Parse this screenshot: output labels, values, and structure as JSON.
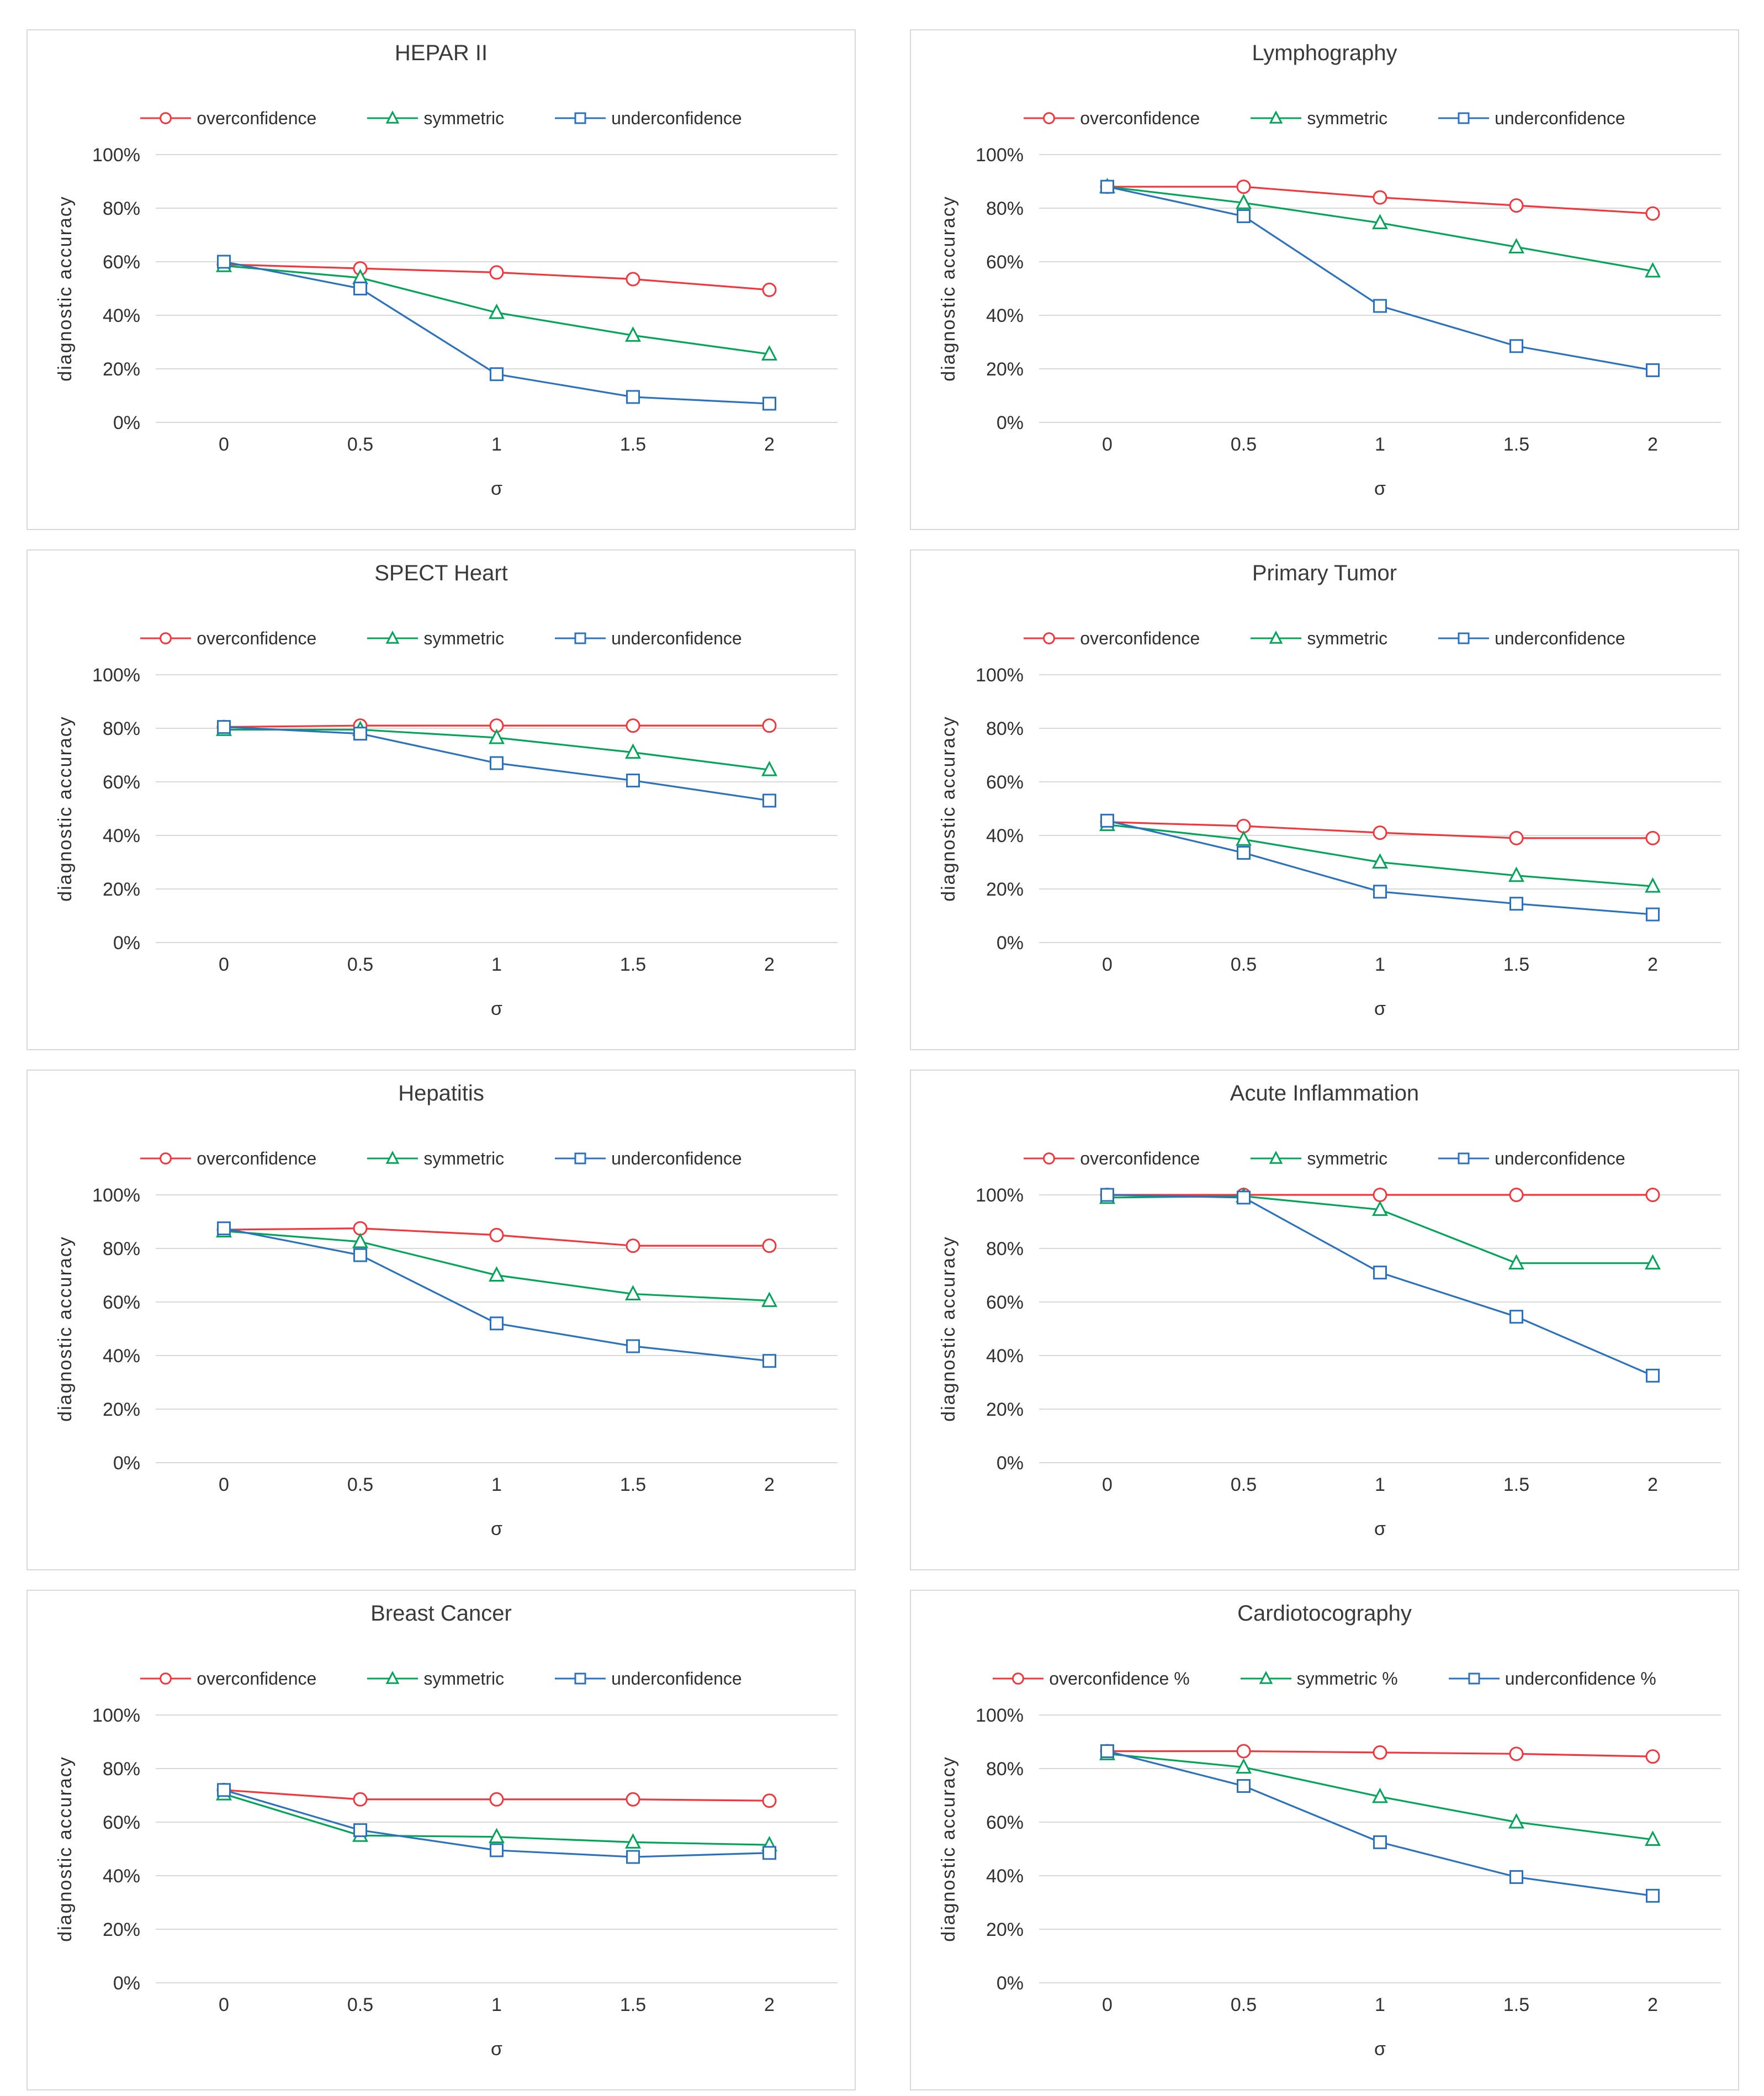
{
  "page": {
    "background": "#ffffff"
  },
  "colors": {
    "overconfidence": "#f4353c",
    "symmetric": "#00a557",
    "underconfidence": "#2a72bf",
    "gridline": "#d9d9d9",
    "panel_border": "#d9d9d9",
    "text": "#303030",
    "marker_fill": "#ffffff"
  },
  "y_axis": {
    "title": "diagnostic accuracy",
    "tick_labels": [
      "100%",
      "80%",
      "60%",
      "40%",
      "20%",
      "0%"
    ],
    "min": 0,
    "max": 100,
    "step": 20,
    "grid": true
  },
  "x_axis": {
    "title": "σ",
    "tick_labels": [
      "0",
      "0.5",
      "1",
      "1.5",
      "2"
    ]
  },
  "chart_data": [
    {
      "type": "line",
      "title": "HEPAR II",
      "xlabel": "σ",
      "ylabel": "diagnostic accuracy",
      "x": [
        0,
        0.5,
        1,
        1.5,
        2
      ],
      "ylim": [
        0,
        100
      ],
      "legend_position": "top",
      "series": [
        {
          "name": "overconfidence",
          "marker": "circle",
          "color_key": "overconfidence",
          "values": [
            59,
            57.5,
            56,
            53.5,
            49.5
          ]
        },
        {
          "name": "symmetric",
          "marker": "triangle",
          "color_key": "symmetric",
          "values": [
            58.5,
            54,
            41,
            32.5,
            25.5
          ]
        },
        {
          "name": "underconfidence",
          "marker": "square",
          "color_key": "underconfidence",
          "values": [
            60,
            50,
            18,
            9.5,
            7
          ]
        }
      ]
    },
    {
      "type": "line",
      "title": "Lymphography",
      "xlabel": "σ",
      "ylabel": "diagnostic accuracy",
      "x": [
        0,
        0.5,
        1,
        1.5,
        2
      ],
      "ylim": [
        0,
        100
      ],
      "legend_position": "top",
      "series": [
        {
          "name": "overconfidence",
          "marker": "circle",
          "color_key": "overconfidence",
          "values": [
            88,
            88,
            84,
            81,
            78
          ]
        },
        {
          "name": "symmetric",
          "marker": "triangle",
          "color_key": "symmetric",
          "values": [
            88,
            82,
            74.5,
            65.5,
            56.5
          ]
        },
        {
          "name": "underconfidence",
          "marker": "square",
          "color_key": "underconfidence",
          "values": [
            88,
            77,
            43.5,
            28.5,
            19.5
          ]
        }
      ]
    },
    {
      "type": "line",
      "title": "SPECT Heart",
      "xlabel": "σ",
      "ylabel": "diagnostic accuracy",
      "x": [
        0,
        0.5,
        1,
        1.5,
        2
      ],
      "ylim": [
        0,
        100
      ],
      "legend_position": "top",
      "series": [
        {
          "name": "overconfidence",
          "marker": "circle",
          "color_key": "overconfidence",
          "values": [
            80.5,
            81,
            81,
            81,
            81
          ]
        },
        {
          "name": "symmetric",
          "marker": "triangle",
          "color_key": "symmetric",
          "values": [
            79.5,
            79.5,
            76.5,
            71,
            64.5
          ]
        },
        {
          "name": "underconfidence",
          "marker": "square",
          "color_key": "underconfidence",
          "values": [
            80.5,
            78,
            67,
            60.5,
            53
          ]
        }
      ]
    },
    {
      "type": "line",
      "title": "Primary Tumor",
      "xlabel": "σ",
      "ylabel": "diagnostic accuracy",
      "x": [
        0,
        0.5,
        1,
        1.5,
        2
      ],
      "ylim": [
        0,
        100
      ],
      "legend_position": "top",
      "series": [
        {
          "name": "overconfidence",
          "marker": "circle",
          "color_key": "overconfidence",
          "values": [
            45,
            43.5,
            41,
            39,
            39
          ]
        },
        {
          "name": "symmetric",
          "marker": "triangle",
          "color_key": "symmetric",
          "values": [
            44,
            38.5,
            30,
            25,
            21
          ]
        },
        {
          "name": "underconfidence",
          "marker": "square",
          "color_key": "underconfidence",
          "values": [
            45.5,
            33.5,
            19,
            14.5,
            10.5
          ]
        }
      ]
    },
    {
      "type": "line",
      "title": "Hepatitis",
      "xlabel": "σ",
      "ylabel": "diagnostic accuracy",
      "x": [
        0,
        0.5,
        1,
        1.5,
        2
      ],
      "ylim": [
        0,
        100
      ],
      "legend_position": "top",
      "series": [
        {
          "name": "overconfidence",
          "marker": "circle",
          "color_key": "overconfidence",
          "values": [
            87,
            87.5,
            85,
            81,
            81
          ]
        },
        {
          "name": "symmetric",
          "marker": "triangle",
          "color_key": "symmetric",
          "values": [
            86.5,
            82.5,
            70,
            63,
            60.5
          ]
        },
        {
          "name": "underconfidence",
          "marker": "square",
          "color_key": "underconfidence",
          "values": [
            87.5,
            77.5,
            52,
            43.5,
            38
          ]
        }
      ]
    },
    {
      "type": "line",
      "title": "Acute Inflammation",
      "xlabel": "σ",
      "ylabel": "diagnostic accuracy",
      "x": [
        0,
        0.5,
        1,
        1.5,
        2
      ],
      "ylim": [
        0,
        100
      ],
      "legend_position": "top",
      "series": [
        {
          "name": "overconfidence",
          "marker": "circle",
          "color_key": "overconfidence",
          "values": [
            100,
            100,
            100,
            100,
            100
          ]
        },
        {
          "name": "symmetric",
          "marker": "triangle",
          "color_key": "symmetric",
          "values": [
            99,
            99.5,
            94.5,
            74.5,
            74.5
          ]
        },
        {
          "name": "underconfidence",
          "marker": "square",
          "color_key": "underconfidence",
          "values": [
            100,
            99,
            71,
            54.5,
            32.5
          ]
        }
      ]
    },
    {
      "type": "line",
      "title": "Breast Cancer",
      "xlabel": "σ",
      "ylabel": "diagnostic accuracy",
      "x": [
        0,
        0.5,
        1,
        1.5,
        2
      ],
      "ylim": [
        0,
        100
      ],
      "legend_position": "top",
      "series": [
        {
          "name": "overconfidence",
          "marker": "circle",
          "color_key": "overconfidence",
          "values": [
            72,
            68.5,
            68.5,
            68.5,
            68
          ]
        },
        {
          "name": "symmetric",
          "marker": "triangle",
          "color_key": "symmetric",
          "values": [
            70.5,
            55,
            54.5,
            52.5,
            51.5
          ]
        },
        {
          "name": "underconfidence",
          "marker": "square",
          "color_key": "underconfidence",
          "values": [
            72,
            57,
            49.5,
            47,
            48.5
          ]
        }
      ]
    },
    {
      "type": "line",
      "title": "Cardiotocography",
      "xlabel": "σ",
      "ylabel": "diagnostic accuracy",
      "x": [
        0,
        0.5,
        1,
        1.5,
        2
      ],
      "ylim": [
        0,
        100
      ],
      "legend_position": "top",
      "legend_labels": [
        "overconfidence %",
        "symmetric %",
        "underconfidence %"
      ],
      "series": [
        {
          "name": "overconfidence %",
          "marker": "circle",
          "color_key": "overconfidence",
          "values": [
            86.5,
            86.5,
            86,
            85.5,
            84.5
          ]
        },
        {
          "name": "symmetric %",
          "marker": "triangle",
          "color_key": "symmetric",
          "values": [
            85.5,
            80.5,
            69.5,
            60,
            53.5
          ]
        },
        {
          "name": "underconfidence %",
          "marker": "square",
          "color_key": "underconfidence",
          "values": [
            86.5,
            73.5,
            52.5,
            39.5,
            32.5
          ]
        }
      ]
    }
  ]
}
